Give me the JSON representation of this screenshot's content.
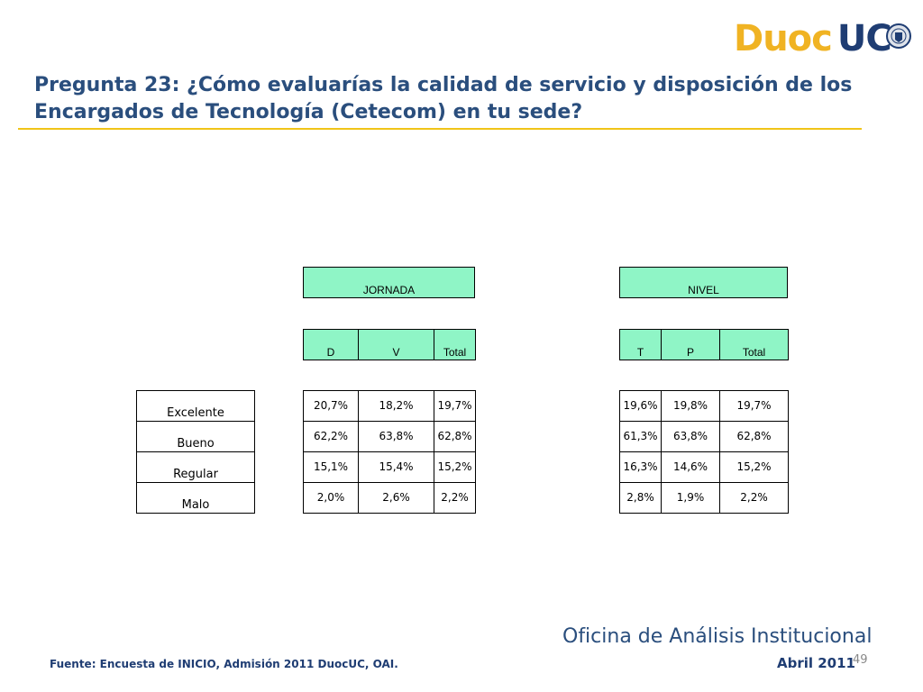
{
  "logo": {
    "left": "Duoc",
    "right": "UC"
  },
  "title": "Pregunta 23: ¿Cómo evaluarías la calidad de servicio y disposición de los Encargados de Tecnología (Cetecom) en tu sede?",
  "row_labels": [
    "Excelente",
    "Bueno",
    "Regular",
    "Malo"
  ],
  "jornada": {
    "header": "JORNADA",
    "columns": [
      "D",
      "V",
      "Total"
    ],
    "rows": [
      [
        "20,7%",
        "18,2%",
        "19,7%"
      ],
      [
        "62,2%",
        "63,8%",
        "62,8%"
      ],
      [
        "15,1%",
        "15,4%",
        "15,2%"
      ],
      [
        "2,0%",
        "2,6%",
        "2,2%"
      ]
    ]
  },
  "nivel": {
    "header": "NIVEL",
    "columns": [
      "T",
      "P",
      "Total"
    ],
    "rows": [
      [
        "19,6%",
        "19,8%",
        "19,7%"
      ],
      [
        "61,3%",
        "63,8%",
        "62,8%"
      ],
      [
        "16,3%",
        "14,6%",
        "15,2%"
      ],
      [
        "2,8%",
        "1,9%",
        "2,2%"
      ]
    ]
  },
  "footer": {
    "office": "Oficina de Análisis Institucional",
    "date": "Abril 2011",
    "page": "49",
    "source": "Fuente: Encuesta de INICIO, Admisión 2011 DuocUC, OAI."
  }
}
